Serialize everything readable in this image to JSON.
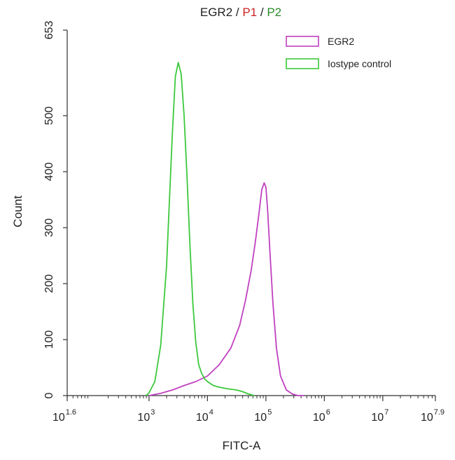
{
  "chart_data": {
    "type": "line",
    "title": {
      "parts": [
        {
          "text": "EGR2",
          "color": "#222222"
        },
        {
          "text": " / ",
          "color": "#222222"
        },
        {
          "text": "P1",
          "color": "#cc2222"
        },
        {
          "text": " / ",
          "color": "#222222"
        },
        {
          "text": "P2",
          "color": "#2a8a2a"
        }
      ]
    },
    "xlabel": "FITC-A",
    "ylabel": "Count",
    "x_scale": "log10",
    "xlim": [
      1.6,
      7.9
    ],
    "ylim": [
      0,
      653
    ],
    "x_ticks": [
      {
        "base": "10",
        "exp": "1.6",
        "value": 1.6
      },
      {
        "base": "10",
        "exp": "3",
        "value": 3
      },
      {
        "base": "10",
        "exp": "4",
        "value": 4
      },
      {
        "base": "10",
        "exp": "5",
        "value": 5
      },
      {
        "base": "10",
        "exp": "6",
        "value": 6
      },
      {
        "base": "10",
        "exp": "7",
        "value": 7
      },
      {
        "base": "10",
        "exp": "7.9",
        "value": 7.9
      }
    ],
    "y_ticks": [
      {
        "label": "0",
        "value": 0
      },
      {
        "label": "100",
        "value": 100
      },
      {
        "label": "200",
        "value": 200
      },
      {
        "label": "300",
        "value": 300
      },
      {
        "label": "400",
        "value": 400
      },
      {
        "label": "500",
        "value": 500
      },
      {
        "label": "653",
        "value": 653
      }
    ],
    "legend_position": "top-right",
    "grid": false,
    "series": [
      {
        "name": "EGR2",
        "color": "#c040c0",
        "x": [
          3.0,
          3.2,
          3.4,
          3.6,
          3.8,
          4.0,
          4.2,
          4.4,
          4.55,
          4.65,
          4.75,
          4.82,
          4.88,
          4.93,
          4.97,
          5.0,
          5.03,
          5.07,
          5.12,
          5.18,
          5.25,
          5.35,
          5.45,
          5.55,
          5.65
        ],
        "y": [
          0,
          4,
          10,
          18,
          25,
          35,
          55,
          85,
          125,
          170,
          225,
          275,
          325,
          368,
          380,
          372,
          330,
          255,
          165,
          85,
          35,
          10,
          3,
          0,
          0
        ]
      },
      {
        "name": "Iostype control",
        "color": "#3cc83c",
        "x": [
          2.95,
          3.0,
          3.1,
          3.2,
          3.3,
          3.4,
          3.45,
          3.5,
          3.55,
          3.6,
          3.65,
          3.7,
          3.75,
          3.8,
          3.85,
          3.9,
          3.95,
          4.0,
          4.1,
          4.2,
          4.35,
          4.5,
          4.6,
          4.7,
          4.8
        ],
        "y": [
          0,
          5,
          25,
          90,
          230,
          470,
          570,
          595,
          575,
          500,
          390,
          270,
          165,
          95,
          55,
          40,
          30,
          25,
          18,
          15,
          12,
          10,
          7,
          3,
          0
        ]
      }
    ]
  }
}
